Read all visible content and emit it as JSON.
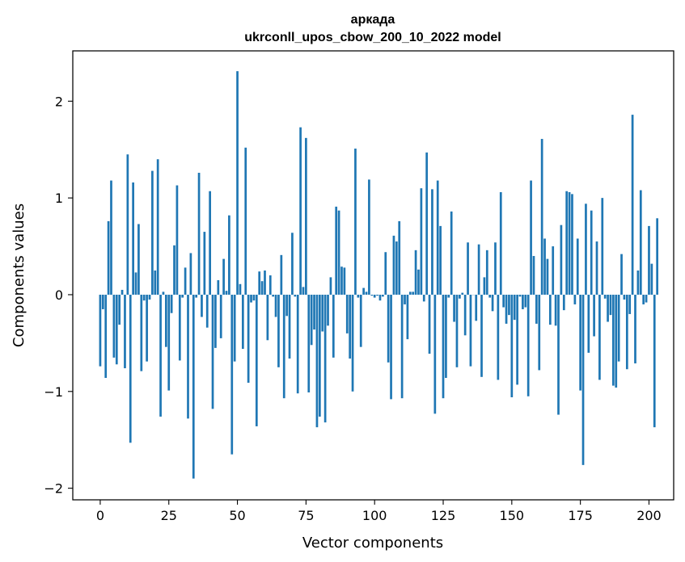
{
  "chart_data": {
    "type": "bar",
    "title_line1": "аркада",
    "title_line2": "ukrconll_upos_cbow_200_10_2022 model",
    "xlabel": "Vector components",
    "ylabel": "Components values",
    "xlim": [
      -10,
      209
    ],
    "ylim": [
      -2.12,
      2.52
    ],
    "x_ticks": [
      0,
      25,
      50,
      75,
      100,
      125,
      150,
      175,
      200
    ],
    "x_tick_labels": [
      "0",
      "25",
      "50",
      "75",
      "100",
      "125",
      "150",
      "175",
      "200"
    ],
    "y_ticks": [
      -2,
      -1,
      0,
      1,
      2
    ],
    "y_tick_labels": [
      "−2",
      "−1",
      "0",
      "1",
      "2"
    ],
    "grid": false,
    "bar_color": "#1f77b4",
    "values": [
      -0.74,
      -0.15,
      -0.86,
      0.76,
      1.18,
      -0.65,
      -0.72,
      -0.31,
      0.05,
      -0.76,
      1.45,
      -1.53,
      1.16,
      0.23,
      0.73,
      -0.79,
      -0.06,
      -0.69,
      -0.05,
      1.28,
      0.25,
      1.4,
      -1.26,
      0.03,
      -0.54,
      -0.99,
      -0.19,
      0.51,
      1.13,
      -0.68,
      -0.03,
      0.28,
      -1.28,
      0.43,
      -1.9,
      -0.03,
      1.26,
      -0.23,
      0.65,
      -0.34,
      1.07,
      -1.18,
      -0.55,
      0.15,
      -0.45,
      0.37,
      0.04,
      0.82,
      -1.65,
      -0.69,
      2.31,
      0.11,
      -0.56,
      1.52,
      -0.91,
      -0.08,
      -0.06,
      -1.36,
      0.24,
      0.14,
      0.25,
      -0.47,
      0.2,
      -0.02,
      -0.23,
      -0.75,
      0.41,
      -1.07,
      -0.22,
      -0.66,
      0.64,
      -0.02,
      -1.02,
      1.73,
      0.08,
      1.62,
      -1.01,
      -0.52,
      -0.36,
      -1.37,
      -1.26,
      -0.38,
      -1.32,
      -0.32,
      0.18,
      -0.65,
      0.91,
      0.87,
      0.29,
      0.28,
      -0.4,
      -0.66,
      -1.0,
      1.51,
      -0.03,
      -0.54,
      0.07,
      0.03,
      1.19,
      -0.01,
      -0.03,
      -0.01,
      -0.06,
      -0.02,
      0.44,
      -0.7,
      -1.08,
      0.61,
      0.55,
      0.76,
      -1.07,
      -0.1,
      -0.46,
      0.03,
      0.03,
      0.46,
      0.26,
      1.1,
      -0.07,
      1.47,
      -0.61,
      1.09,
      -1.23,
      1.18,
      0.71,
      -1.07,
      -0.86,
      -0.03,
      0.86,
      -0.28,
      -0.75,
      -0.04,
      0.02,
      -0.42,
      0.54,
      -0.74,
      0.0,
      -0.27,
      0.52,
      -0.85,
      0.18,
      0.46,
      -0.03,
      -0.17,
      0.54,
      -0.88,
      1.06,
      -0.13,
      -0.3,
      -0.21,
      -1.06,
      -0.26,
      -0.93,
      -0.02,
      -0.15,
      -0.13,
      -1.05,
      1.18,
      0.4,
      -0.3,
      -0.78,
      1.61,
      0.58,
      0.37,
      -0.31,
      0.5,
      -0.32,
      -1.24,
      0.72,
      -0.16,
      1.07,
      1.06,
      1.04,
      -0.1,
      0.58,
      -0.99,
      -1.76,
      0.94,
      -0.6,
      0.87,
      -0.43,
      0.55,
      -0.88,
      1.0,
      -0.04,
      -0.28,
      -0.21,
      -0.94,
      -0.96,
      -0.69,
      0.42,
      -0.05,
      -0.77,
      -0.2,
      1.86,
      -0.71,
      0.25,
      1.08,
      -0.1,
      -0.08,
      0.71,
      0.32,
      -1.37,
      0.79
    ]
  }
}
